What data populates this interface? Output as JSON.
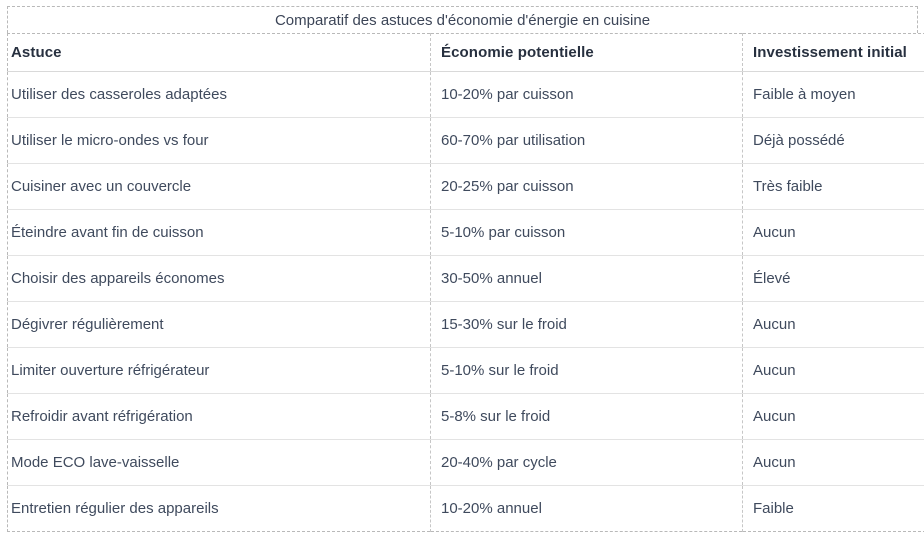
{
  "chart_data": {
    "type": "table",
    "title": "Comparatif des astuces d'économie d'énergie en cuisine",
    "columns": [
      "Astuce",
      "Économie potentielle",
      "Investissement initial"
    ],
    "rows": [
      [
        "Utiliser des casseroles adaptées",
        "10-20% par cuisson",
        "Faible à moyen"
      ],
      [
        "Utiliser le micro-ondes vs four",
        "60-70% par utilisation",
        "Déjà possédé"
      ],
      [
        "Cuisiner avec un couvercle",
        "20-25% par cuisson",
        "Très faible"
      ],
      [
        "Éteindre avant fin de cuisson",
        "5-10% par cuisson",
        "Aucun"
      ],
      [
        "Choisir des appareils économes",
        "30-50% annuel",
        "Élevé"
      ],
      [
        "Dégivrer régulièrement",
        "15-30% sur le froid",
        "Aucun"
      ],
      [
        "Limiter ouverture réfrigérateur",
        "5-10% sur le froid",
        "Aucun"
      ],
      [
        "Refroidir avant réfrigération",
        "5-8% sur le froid",
        "Aucun"
      ],
      [
        "Mode ECO lave-vaisselle",
        "20-40% par cycle",
        "Aucun"
      ],
      [
        "Entretien régulier des appareils",
        "10-20% annuel",
        "Faible"
      ]
    ],
    "layout": {
      "grid": "dashed outer border and dashed column separators, solid light row separators",
      "legend_position": "none"
    }
  },
  "colors": {
    "background": "#ffffff",
    "dashed_border": "#b9b9b9",
    "row_separator": "#e3e3e3",
    "header_text": "#27303f",
    "body_text": "#3f4a5d"
  }
}
